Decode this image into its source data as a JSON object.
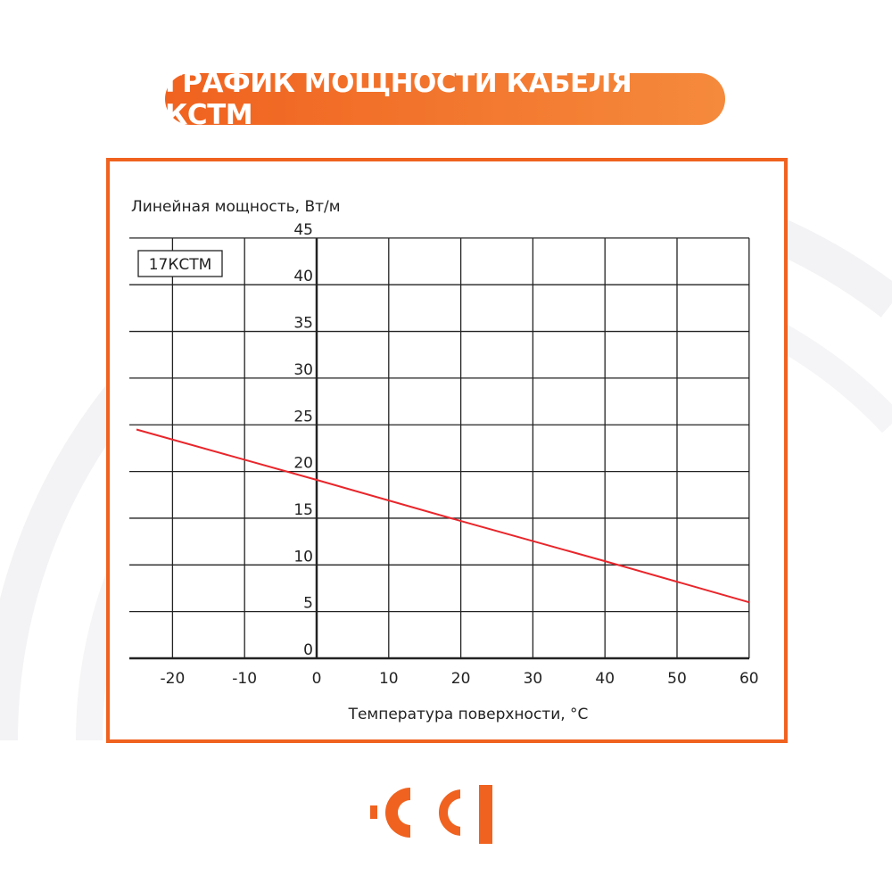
{
  "title": "ГРАФИК МОЩНОСТИ КАБЕЛЯ КСТМ",
  "colors": {
    "accent": "#f0621f",
    "line": "#e8262b"
  },
  "logo": {
    "text": "CCI",
    "icon": "cci-logo"
  },
  "chart_data": {
    "type": "line",
    "ylabel": "Линейная мощность, Вт/м",
    "xlabel": "Температура поверхности, °С",
    "legend_label": "17КСТМ",
    "xlim": [
      -25,
      60
    ],
    "ylim": [
      0,
      45
    ],
    "xticks": [
      -20,
      -10,
      0,
      10,
      20,
      30,
      40,
      50,
      60
    ],
    "yticks": [
      0,
      5,
      10,
      15,
      20,
      25,
      30,
      35,
      40,
      45
    ],
    "grid": true,
    "series": [
      {
        "name": "17КСТМ",
        "x": [
          -25,
          0,
          20,
          40,
          60
        ],
        "y": [
          24.5,
          19.1,
          14.7,
          10.4,
          6.0
        ]
      }
    ]
  }
}
